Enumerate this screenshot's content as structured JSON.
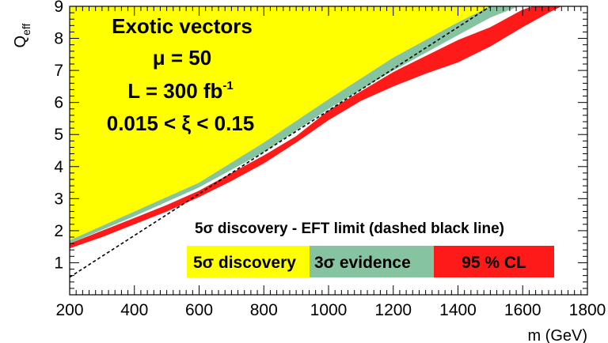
{
  "chart_data": {
    "type": "area",
    "xlabel": "m (GeV)",
    "ylabel": "Q",
    "ylabel_subscript": "eff",
    "xlim": [
      200,
      1800
    ],
    "ylim": [
      0,
      9
    ],
    "xticks": [
      "200",
      "400",
      "600",
      "800",
      "1000",
      "1200",
      "1400",
      "1600",
      "1800"
    ],
    "yticks": [
      "1",
      "2",
      "3",
      "4",
      "5",
      "6",
      "7",
      "8",
      "9"
    ],
    "annotations": {
      "line1": "Exotic vectors",
      "line2": "μ = 50",
      "line3": "L = 300 fb",
      "line3_sup": "-1",
      "line4": "0.015 < ξ < 0.15"
    },
    "legend": {
      "title": "5σ discovery - EFT limit (dashed black line)",
      "entries": [
        "5σ discovery",
        "3σ evidence",
        "95 % CL"
      ]
    },
    "colors": {
      "discovery_5sigma": "#ffff00",
      "evidence_3sigma": "#86c3a0",
      "cl95": "#ff1a1a",
      "eft_line": "#000000"
    },
    "series": [
      {
        "name": "5σ discovery",
        "x": [
          200,
          400,
          600,
          800,
          1000,
          1200,
          1400,
          1500,
          1530
        ],
        "values": [
          1.7,
          2.6,
          3.5,
          4.75,
          6.1,
          7.4,
          8.5,
          9.0,
          9.3
        ]
      },
      {
        "name": "3σ evidence",
        "x": [
          200,
          400,
          600,
          800,
          1000,
          1200,
          1400,
          1500,
          1600,
          1660
        ],
        "values": [
          1.6,
          2.45,
          3.35,
          4.45,
          5.8,
          7.0,
          8.1,
          8.65,
          9.05,
          9.3
        ]
      },
      {
        "name": "95 % CL",
        "x": [
          200,
          300,
          400,
          500,
          600,
          700,
          800,
          900,
          1000,
          1100,
          1200,
          1300,
          1400,
          1500,
          1600,
          1680,
          1720
        ],
        "upper": [
          1.6,
          2.0,
          2.4,
          2.8,
          3.25,
          3.8,
          4.35,
          4.95,
          5.75,
          6.35,
          6.95,
          7.45,
          7.95,
          8.35,
          8.9,
          9.15,
          9.3
        ],
        "lower": [
          1.45,
          1.8,
          2.2,
          2.6,
          3.05,
          3.55,
          4.1,
          4.75,
          5.45,
          6.05,
          6.5,
          6.9,
          7.25,
          7.75,
          8.35,
          8.8,
          9.0
        ]
      },
      {
        "name": "EFT limit",
        "x": [
          200,
          1500
        ],
        "values": [
          0.55,
          9.0
        ]
      }
    ]
  }
}
